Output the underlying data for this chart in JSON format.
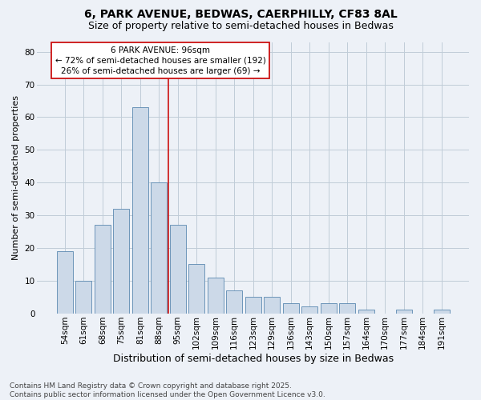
{
  "title1": "6, PARK AVENUE, BEDWAS, CAERPHILLY, CF83 8AL",
  "title2": "Size of property relative to semi-detached houses in Bedwas",
  "xlabel": "Distribution of semi-detached houses by size in Bedwas",
  "ylabel": "Number of semi-detached properties",
  "categories": [
    "54sqm",
    "61sqm",
    "68sqm",
    "75sqm",
    "81sqm",
    "88sqm",
    "95sqm",
    "102sqm",
    "109sqm",
    "116sqm",
    "123sqm",
    "129sqm",
    "136sqm",
    "143sqm",
    "150sqm",
    "157sqm",
    "164sqm",
    "170sqm",
    "177sqm",
    "184sqm",
    "191sqm"
  ],
  "values": [
    19,
    10,
    27,
    32,
    63,
    40,
    27,
    15,
    11,
    7,
    5,
    5,
    3,
    2,
    3,
    3,
    1,
    0,
    1,
    0,
    1
  ],
  "bar_color": "#ccd9e8",
  "bar_edge_color": "#5a88b0",
  "grid_color": "#c0ccd8",
  "bg_color": "#edf1f7",
  "vline_color": "#cc1111",
  "vline_pos": 5.5,
  "annotation_line1": "6 PARK AVENUE: 96sqm",
  "annotation_line2": "← 72% of semi-detached houses are smaller (192)",
  "annotation_line3": "26% of semi-detached houses are larger (69) →",
  "annotation_border_color": "#cc1111",
  "annotation_bg_color": "#ffffff",
  "ylim": [
    0,
    83
  ],
  "yticks": [
    0,
    10,
    20,
    30,
    40,
    50,
    60,
    70,
    80
  ],
  "footnote": "Contains HM Land Registry data © Crown copyright and database right 2025.\nContains public sector information licensed under the Open Government Licence v3.0.",
  "title1_fontsize": 10,
  "title2_fontsize": 9,
  "xlabel_fontsize": 9,
  "ylabel_fontsize": 8,
  "tick_fontsize": 7.5,
  "annotation_fontsize": 7.5,
  "footnote_fontsize": 6.5
}
